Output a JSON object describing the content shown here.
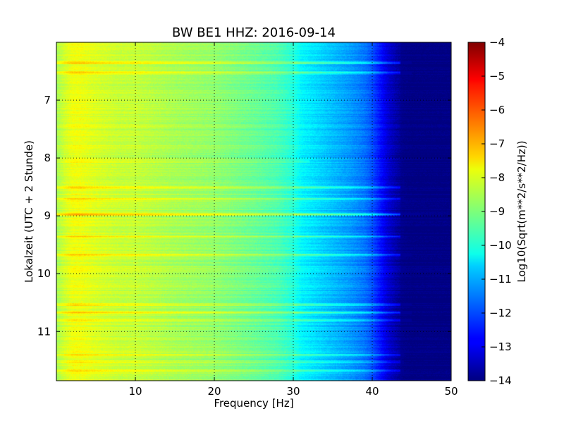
{
  "chart_data": {
    "type": "heatmap",
    "title": "BW BE1 HHZ: 2016-09-14",
    "xlabel": "Frequency [Hz]",
    "ylabel": "Lokalzeit (UTC + 2 Stunde)",
    "xlim": [
      0,
      50
    ],
    "ylim": [
      6.0,
      11.85
    ],
    "y_inverted": true,
    "x_ticks": [
      10,
      20,
      30,
      40,
      50
    ],
    "y_ticks": [
      7,
      8,
      9,
      10,
      11
    ],
    "grid": true,
    "colorbar": {
      "label": "Log10(Sqrt(m**2/s**2/Hz))",
      "range": [
        -14,
        -4
      ],
      "ticks": [
        -4,
        -5,
        -6,
        -7,
        -8,
        -9,
        -10,
        -11,
        -12,
        -13,
        -14
      ],
      "colormap": "jet"
    },
    "spectrum_profile": {
      "frequency_hz": [
        0,
        1,
        2,
        3,
        5,
        8,
        10,
        15,
        20,
        25,
        28,
        30,
        31,
        33,
        35,
        37,
        39,
        40,
        41,
        42,
        43,
        44,
        45,
        50
      ],
      "log10_amplitude": [
        -8.6,
        -8.2,
        -7.9,
        -7.9,
        -8.1,
        -8.3,
        -8.3,
        -8.6,
        -8.8,
        -9.2,
        -9.5,
        -9.9,
        -10.3,
        -10.6,
        -10.9,
        -11.2,
        -11.6,
        -12.0,
        -12.6,
        -13.2,
        -13.6,
        -13.9,
        -14.0,
        -14.0
      ]
    },
    "bright_bands": [
      {
        "time": 6.35,
        "level": 1.6,
        "fmax": 45
      },
      {
        "time": 6.52,
        "level": 1.3,
        "fmax": 45
      },
      {
        "time": 8.05,
        "level": 0.6,
        "fmax": 32
      },
      {
        "time": 8.5,
        "level": 1.2,
        "fmax": 44
      },
      {
        "time": 8.7,
        "level": 1.1,
        "fmax": 44
      },
      {
        "time": 8.97,
        "level": 1.9,
        "fmax": 46
      },
      {
        "time": 9.35,
        "level": 1.1,
        "fmax": 44
      },
      {
        "time": 9.67,
        "level": 1.2,
        "fmax": 45
      },
      {
        "time": 10.53,
        "level": 1.2,
        "fmax": 45
      },
      {
        "time": 10.67,
        "level": 1.4,
        "fmax": 45
      },
      {
        "time": 10.8,
        "level": 1.2,
        "fmax": 45
      },
      {
        "time": 11.4,
        "level": 1.1,
        "fmax": 44
      },
      {
        "time": 11.52,
        "level": 1.0,
        "fmax": 44
      },
      {
        "time": 11.67,
        "level": 1.0,
        "fmax": 44
      }
    ]
  }
}
